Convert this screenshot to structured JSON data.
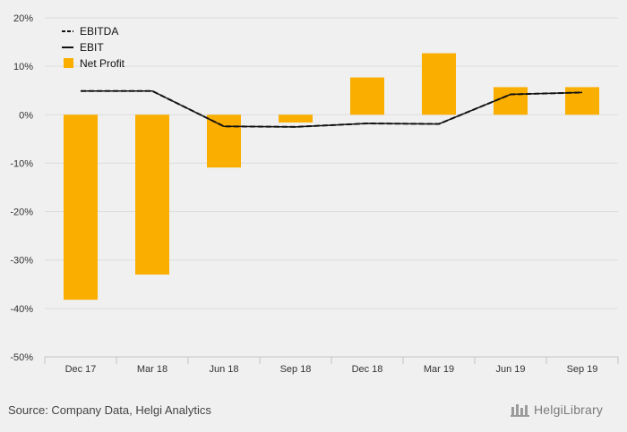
{
  "chart_data": {
    "type": "bar",
    "categories": [
      "Dec 17",
      "Mar 18",
      "Jun 18",
      "Sep 18",
      "Dec 18",
      "Mar 19",
      "Jun 19",
      "Sep 19"
    ],
    "series": [
      {
        "name": "Net Profit",
        "type": "bar",
        "color": "#f9ae00",
        "values": [
          -38.2,
          -33.0,
          -10.9,
          -1.6,
          7.7,
          12.7,
          5.7,
          5.7
        ]
      },
      {
        "name": "EBITDA",
        "type": "line",
        "style": "dashed",
        "color": "#111111",
        "values": [
          4.9,
          4.9,
          -2.4,
          -2.5,
          -1.8,
          -1.9,
          4.2,
          4.6
        ]
      },
      {
        "name": "EBIT",
        "type": "line",
        "style": "solid",
        "color": "#111111",
        "values": [
          4.9,
          4.9,
          -2.4,
          -2.5,
          -1.8,
          -1.9,
          4.2,
          4.6
        ]
      }
    ],
    "legend_order": [
      "EBITDA",
      "EBIT",
      "Net Profit"
    ],
    "legend_position": "top-left",
    "y_ticks": [
      20,
      10,
      0,
      -10,
      -20,
      -30,
      -40,
      -50
    ],
    "y_unit": "%",
    "ylim": [
      -50,
      20
    ],
    "grid": true,
    "title": "",
    "xlabel": "",
    "ylabel": ""
  },
  "footer": {
    "source": "Source: Company Data, Helgi Analytics",
    "brand": "HelgiLibrary"
  }
}
